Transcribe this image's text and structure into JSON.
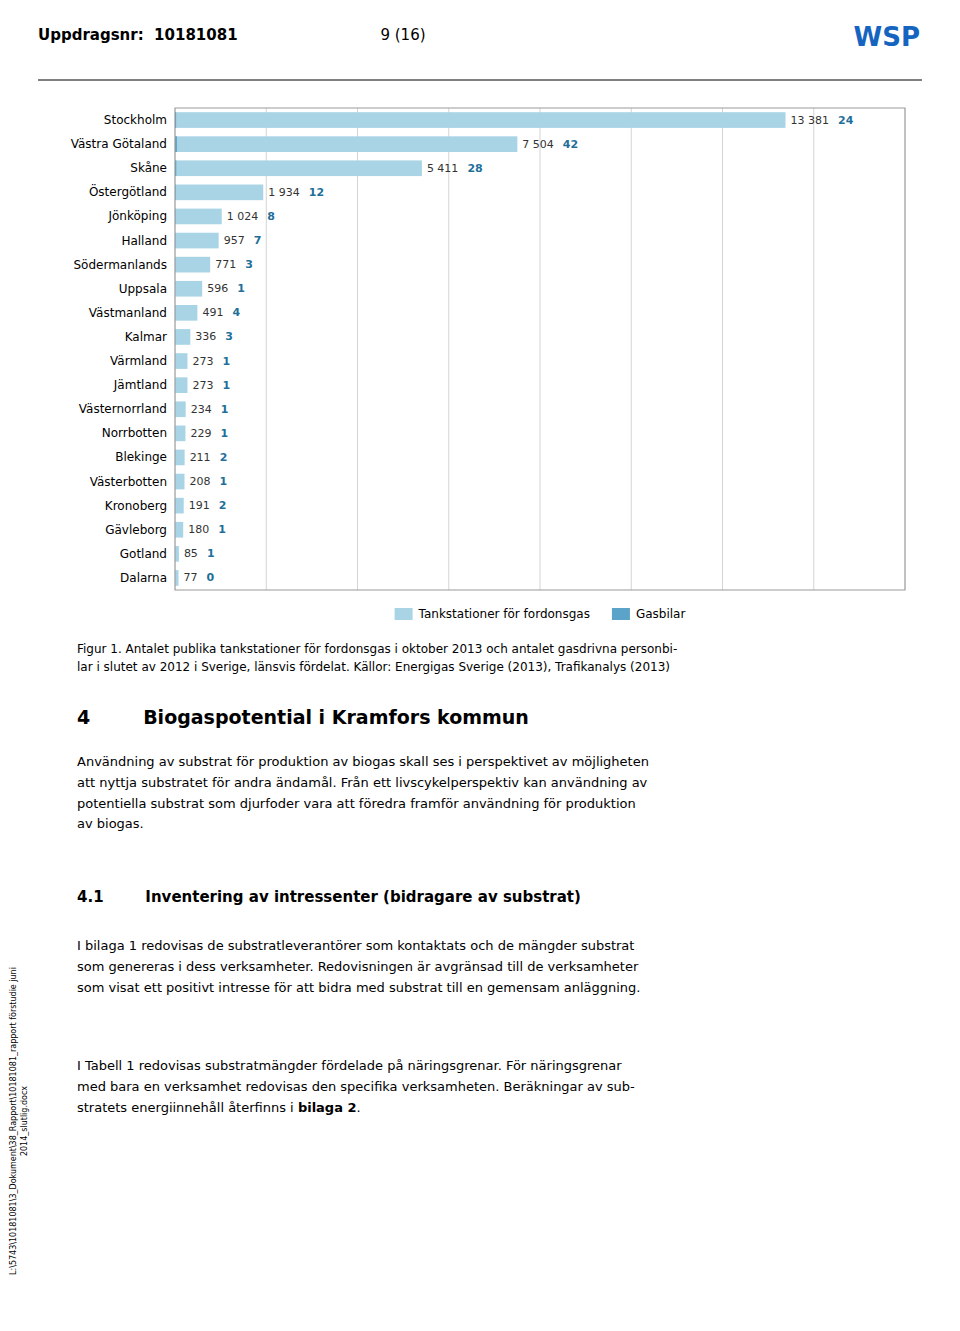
{
  "page": {
    "header_left": "Uppdragsnr:  10181081",
    "header_center": "9 (16)",
    "logo": "WSP",
    "logo_color": "#1565C0",
    "fig_caption": "Figur 1. Antalet publika tankstationer för fordonsgas i oktober 2013 och antalet gasdrivna personbi-\nlar i slutet av 2012 i Sverige, länsvis fördelat. Källor: Energigas Sverige (2013), Trafikanalys (2013)",
    "section4_title": "4        Biogaspotential i Kramfors kommun",
    "section4_text": "Användning av substrat för produktion av biogas skall ses i perspektivet av möjligheten\natt nyttja substratet för andra ändamål. Från ett livscykelperspektiv kan användning av\npotentiella substrat som djurfoder vara att föredra framför användning för produktion\nav biogas.",
    "section41_title": "4.1        Inventering av intressenter (bidragare av substrat)",
    "section41_para1": "I bilaga 1 redovisas de substratleverantörer som kontaktats och de mängder substrat\nsom genereras i dess verksamheter. Redovisningen är avgränsad till de verksamheter\nsom visat ett positivt intresse för att bidra med substrat till en gemensam anläggning.",
    "section41_para2_part1": "I Tabell 1 redovisas substratmängder fördelade på näringsgrenar. För näringsgrenar\nmed bara en verksamhet redovisas den specifika verksamheten. Beräkningar av sub-\nstratets energiinnehåll återfinns i ",
    "section41_para2_bold": "bilaga 2",
    "section41_para2_part3": ".",
    "sidebar_text": "L:\\5743\\10181081\\3_Dokument\\38_Rapport\\10181081_rapport förstudie juni\n2014_slutlig.docx"
  },
  "chart_data": {
    "type": "bar",
    "orientation": "horizontal",
    "categories": [
      "Dalarna",
      "Gotland",
      "Gävleborg",
      "Kronoberg",
      "Västerbotten",
      "Blekinge",
      "Norrbotten",
      "Västernorrland",
      "Jämtland",
      "Värmland",
      "Kalmar",
      "Västmanland",
      "Uppsala",
      "Södermanlands",
      "Halland",
      "Jönköping",
      "Östergötland",
      "Skåne",
      "Västra Götaland",
      "Stockholm"
    ],
    "series": [
      {
        "name": "Tankstationer för fordonsgas",
        "color": "#a8d4e6",
        "values": [
          77,
          85,
          180,
          191,
          208,
          211,
          229,
          234,
          273,
          273,
          336,
          491,
          596,
          771,
          957,
          1024,
          1934,
          5411,
          7504,
          13381
        ],
        "value_labels": [
          "77",
          "85",
          "180",
          "191",
          "208",
          "211",
          "229",
          "234",
          "273",
          "273",
          "336",
          "491",
          "596",
          "771",
          "957",
          "1 024",
          "1 934",
          "5 411",
          "7 504",
          "13 381"
        ]
      },
      {
        "name": "Gasbilar",
        "color": "#5ba3c9",
        "values": [
          0,
          1,
          1,
          2,
          1,
          2,
          1,
          1,
          1,
          1,
          3,
          4,
          1,
          3,
          7,
          8,
          12,
          28,
          42,
          24
        ]
      }
    ],
    "xlim": [
      0,
      16000
    ],
    "xticks": [
      0,
      2000,
      4000,
      6000,
      8000,
      10000,
      12000,
      14000,
      16000
    ],
    "grid": true,
    "legend": "bottom",
    "data_labels": true,
    "tick_labels": "y"
  }
}
